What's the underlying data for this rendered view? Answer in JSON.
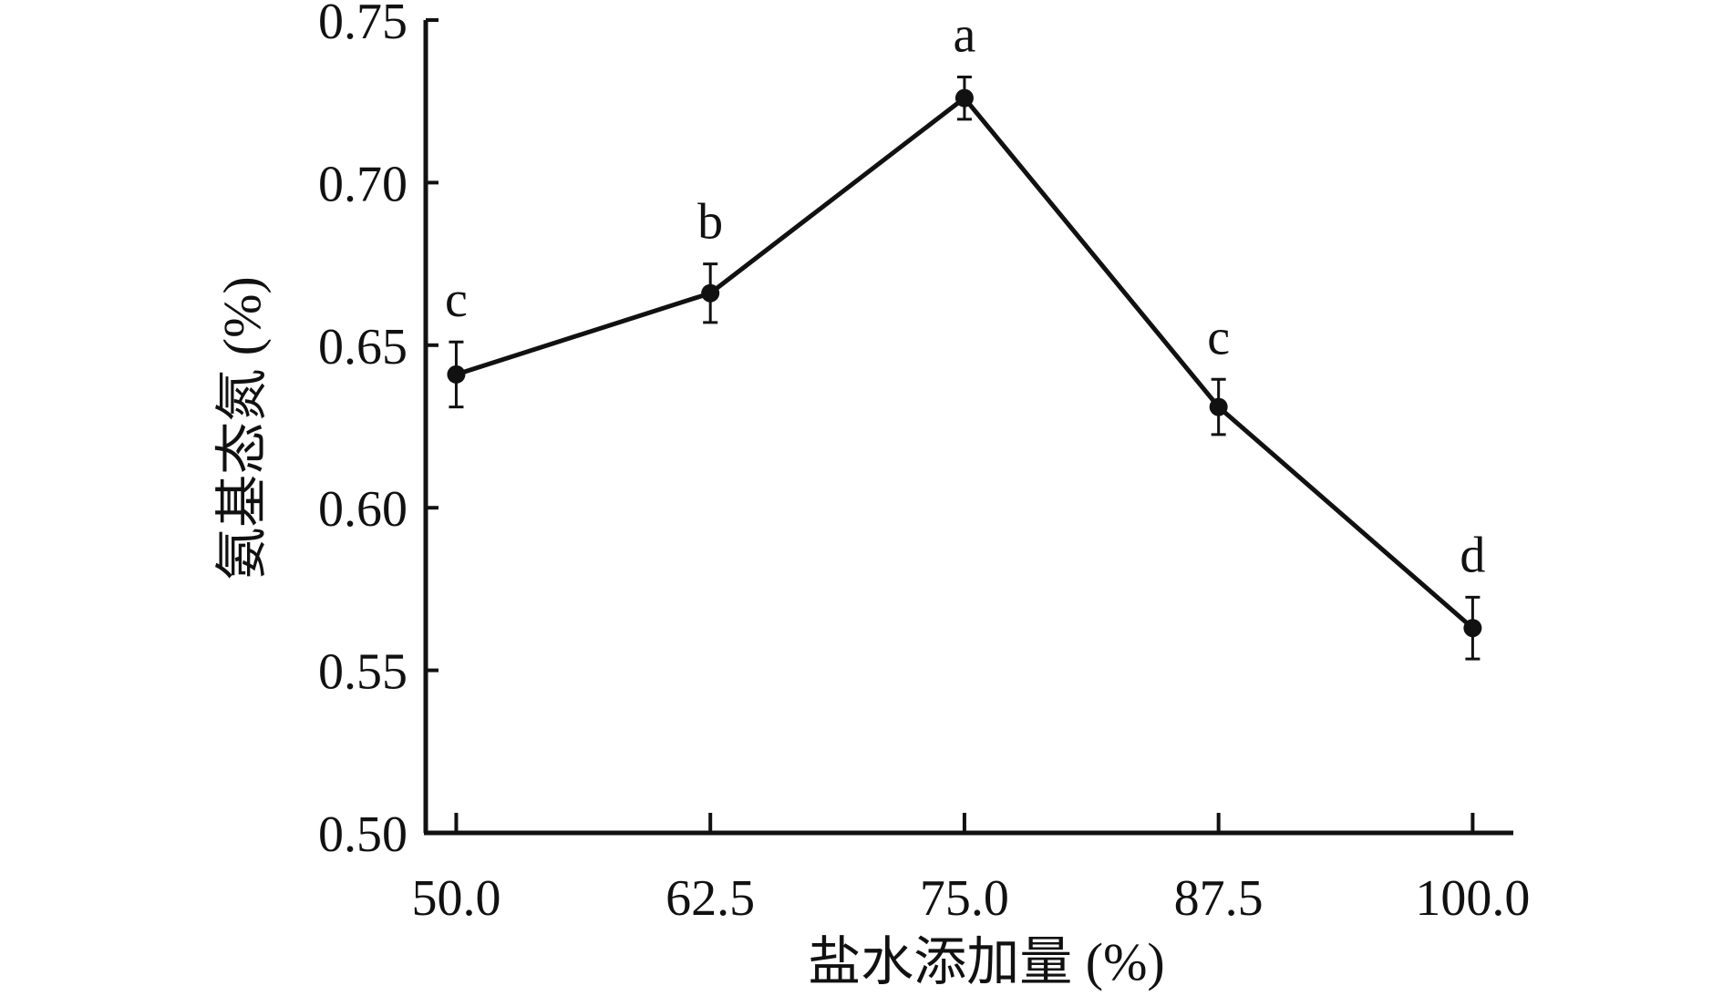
{
  "chart_data": {
    "type": "line",
    "xlabel": "盐水添加量 (%)",
    "ylabel": "氨基态氮 (%)",
    "x": [
      50.0,
      62.5,
      75.0,
      87.5,
      100.0
    ],
    "x_tick_labels": [
      "50.0",
      "62.5",
      "75.0",
      "87.5",
      "100.0"
    ],
    "xlim": [
      48.5,
      102.0
    ],
    "ylim": [
      0.5,
      0.75
    ],
    "y_ticks": [
      0.5,
      0.55,
      0.6,
      0.65,
      0.7,
      0.75
    ],
    "y_tick_labels": [
      "0.50",
      "0.55",
      "0.60",
      "0.65",
      "0.70",
      "0.75"
    ],
    "series": [
      {
        "values": [
          0.641,
          0.666,
          0.726,
          0.631,
          0.563
        ],
        "errors": [
          0.01,
          0.009,
          0.0065,
          0.0085,
          0.0095
        ],
        "significance": [
          "c",
          "b",
          "a",
          "c",
          "d"
        ],
        "color": "#111111",
        "marker": "circle"
      }
    ],
    "grid": false,
    "legend": "none"
  }
}
